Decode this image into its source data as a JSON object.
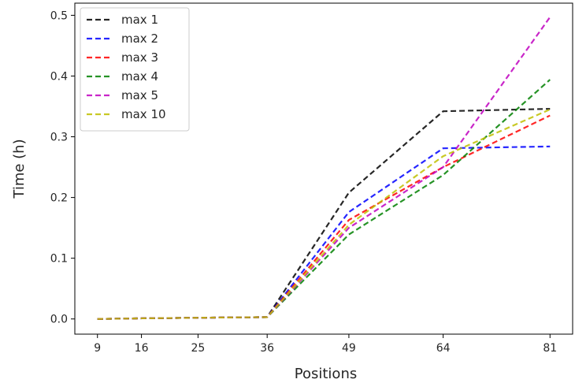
{
  "chart_data": {
    "type": "line",
    "title": "",
    "xlabel": "Positions",
    "ylabel": "Time (h)",
    "x": [
      9,
      16,
      25,
      36,
      49,
      64,
      81
    ],
    "x_ticks": [
      9,
      16,
      25,
      36,
      49,
      64,
      81
    ],
    "xlim": [
      5.4,
      84.6
    ],
    "ylim": [
      -0.025,
      0.52
    ],
    "y_ticks": [
      0.0,
      0.1,
      0.2,
      0.3,
      0.4,
      0.5
    ],
    "y_tick_labels": [
      "0.0",
      "0.1",
      "0.2",
      "0.3",
      "0.4",
      "0.5"
    ],
    "grid": false,
    "line_style": "dashed",
    "legend_position": "top-left",
    "series": [
      {
        "name": "max 1",
        "color": "#000000",
        "values": [
          0.0,
          0.001,
          0.002,
          0.003,
          0.208,
          0.342,
          0.346
        ]
      },
      {
        "name": "max 2",
        "color": "#0000ff",
        "values": [
          0.0,
          0.001,
          0.002,
          0.003,
          0.176,
          0.281,
          0.284
        ]
      },
      {
        "name": "max 3",
        "color": "#ff0000",
        "values": [
          0.0,
          0.001,
          0.002,
          0.003,
          0.163,
          0.25,
          0.335
        ]
      },
      {
        "name": "max 4",
        "color": "#008000",
        "values": [
          0.0,
          0.001,
          0.002,
          0.003,
          0.139,
          0.237,
          0.394
        ]
      },
      {
        "name": "max 5",
        "color": "#bf00bf",
        "values": [
          0.0,
          0.001,
          0.002,
          0.003,
          0.15,
          0.25,
          0.497
        ]
      },
      {
        "name": "max 10",
        "color": "#bfbf00",
        "values": [
          0.0,
          0.001,
          0.002,
          0.003,
          0.155,
          0.268,
          0.345
        ]
      }
    ]
  }
}
